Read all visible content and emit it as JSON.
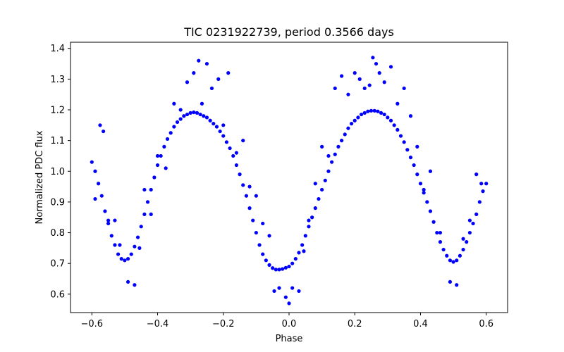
{
  "chart_data": {
    "type": "scatter",
    "title": "TIC 0231922739, period 0.3566 days",
    "xlabel": "Phase",
    "ylabel": "Normalized PDC flux",
    "xlim": [
      -0.665,
      0.665
    ],
    "ylim": [
      0.54,
      1.42
    ],
    "x_ticks": [
      -0.6,
      -0.4,
      -0.2,
      0.0,
      0.2,
      0.4,
      0.6
    ],
    "x_tick_labels": [
      "−0.6",
      "−0.4",
      "−0.2",
      "0.0",
      "0.2",
      "0.4",
      "0.6"
    ],
    "y_ticks": [
      0.6,
      0.7,
      0.8,
      0.9,
      1.0,
      1.1,
      1.2,
      1.3,
      1.4
    ],
    "y_tick_labels": [
      "0.6",
      "0.7",
      "0.8",
      "0.9",
      "1.0",
      "1.1",
      "1.2",
      "1.3",
      "1.4"
    ],
    "grid": false,
    "marker_color": "#0000ff",
    "series": [
      {
        "x": [
          -0.6,
          -0.59,
          -0.58,
          -0.57,
          -0.56,
          -0.55,
          -0.54,
          -0.53,
          -0.52,
          -0.51,
          -0.5,
          -0.49,
          -0.48,
          -0.47,
          -0.46,
          -0.45,
          -0.44,
          -0.43,
          -0.42,
          -0.41,
          -0.4,
          -0.39,
          -0.38,
          -0.37,
          -0.36,
          -0.35,
          -0.34,
          -0.33,
          -0.32,
          -0.31,
          -0.3,
          -0.29,
          -0.28,
          -0.27,
          -0.26,
          -0.25,
          -0.24,
          -0.23,
          -0.22,
          -0.21,
          -0.2,
          -0.19,
          -0.18,
          -0.17,
          -0.16,
          -0.15,
          -0.14,
          -0.13,
          -0.12,
          -0.11,
          -0.1,
          -0.09,
          -0.08,
          -0.07,
          -0.06,
          -0.05,
          -0.04,
          -0.03,
          -0.02,
          -0.01,
          0.0,
          0.01,
          0.02,
          0.03,
          0.04,
          0.05,
          0.06,
          0.07,
          0.08,
          0.09,
          0.1,
          0.11,
          0.12,
          0.13,
          0.14,
          0.15,
          0.16,
          0.17,
          0.18,
          0.19,
          0.2,
          0.21,
          0.22,
          0.23,
          0.24,
          0.25,
          0.26,
          0.27,
          0.28,
          0.29,
          0.3,
          0.31,
          0.32,
          0.33,
          0.34,
          0.35,
          0.36,
          0.37,
          0.38,
          0.39,
          0.4,
          0.41,
          0.42,
          0.43,
          0.44,
          0.45,
          0.46,
          0.47,
          0.48,
          0.49,
          0.5,
          0.51,
          0.52,
          0.53,
          0.54,
          0.55,
          0.56,
          0.57,
          0.58,
          0.59,
          0.6
        ],
        "y": [
          1.03,
          1.0,
          0.96,
          0.92,
          0.87,
          0.83,
          0.79,
          0.76,
          0.73,
          0.715,
          0.71,
          0.715,
          0.73,
          0.755,
          0.785,
          0.82,
          0.86,
          0.9,
          0.94,
          0.98,
          1.02,
          1.05,
          1.08,
          1.105,
          1.125,
          1.145,
          1.16,
          1.17,
          1.18,
          1.185,
          1.19,
          1.192,
          1.19,
          1.185,
          1.18,
          1.175,
          1.165,
          1.155,
          1.145,
          1.13,
          1.115,
          1.095,
          1.075,
          1.05,
          1.02,
          0.99,
          0.955,
          0.92,
          0.88,
          0.84,
          0.8,
          0.76,
          0.73,
          0.71,
          0.695,
          0.685,
          0.68,
          0.68,
          0.682,
          0.686,
          0.69,
          0.7,
          0.715,
          0.735,
          0.76,
          0.79,
          0.82,
          0.85,
          0.88,
          0.91,
          0.94,
          0.97,
          1.0,
          1.03,
          1.055,
          1.08,
          1.1,
          1.12,
          1.14,
          1.155,
          1.165,
          1.175,
          1.185,
          1.19,
          1.195,
          1.197,
          1.197,
          1.195,
          1.19,
          1.185,
          1.175,
          1.165,
          1.15,
          1.135,
          1.115,
          1.095,
          1.07,
          1.045,
          1.02,
          0.99,
          0.96,
          0.93,
          0.9,
          0.87,
          0.835,
          0.8,
          0.77,
          0.745,
          0.725,
          0.71,
          0.705,
          0.71,
          0.725,
          0.745,
          0.77,
          0.8,
          0.83,
          0.86,
          0.9,
          0.935,
          0.96
        ]
      },
      {
        "x": [
          -0.59,
          -0.575,
          -0.565,
          -0.55,
          -0.53,
          -0.515,
          -0.49,
          -0.47,
          -0.455,
          -0.44,
          -0.42,
          -0.4,
          -0.375,
          -0.35,
          -0.33,
          -0.31,
          -0.29,
          -0.275,
          -0.265,
          -0.25,
          -0.235,
          -0.215,
          -0.2,
          -0.185,
          -0.16,
          -0.14,
          -0.12,
          -0.1,
          -0.08,
          -0.06,
          -0.045,
          -0.03,
          -0.01,
          0.0,
          0.01,
          0.03,
          0.045,
          0.06,
          0.08,
          0.1,
          0.12,
          0.14,
          0.16,
          0.18,
          0.2,
          0.215,
          0.23,
          0.245,
          0.255,
          0.265,
          0.275,
          0.29,
          0.31,
          0.33,
          0.35,
          0.37,
          0.39,
          0.41,
          0.43,
          0.46,
          0.49,
          0.51,
          0.53,
          0.55,
          0.57,
          0.585
        ],
        "y": [
          0.91,
          1.15,
          1.13,
          0.84,
          0.84,
          0.76,
          0.64,
          0.63,
          0.75,
          0.94,
          0.86,
          1.05,
          1.01,
          1.22,
          1.2,
          1.29,
          1.32,
          1.36,
          1.22,
          1.35,
          1.27,
          1.3,
          1.15,
          1.32,
          1.06,
          1.1,
          0.95,
          0.92,
          0.83,
          0.79,
          0.61,
          0.62,
          0.59,
          0.57,
          0.62,
          0.61,
          0.74,
          0.84,
          0.96,
          1.08,
          1.05,
          1.27,
          1.31,
          1.25,
          1.32,
          1.3,
          1.27,
          1.28,
          1.37,
          1.35,
          1.32,
          1.29,
          1.34,
          1.22,
          1.27,
          1.18,
          1.08,
          0.94,
          1.0,
          0.8,
          0.64,
          0.63,
          0.78,
          0.84,
          0.99,
          0.96
        ]
      }
    ]
  }
}
